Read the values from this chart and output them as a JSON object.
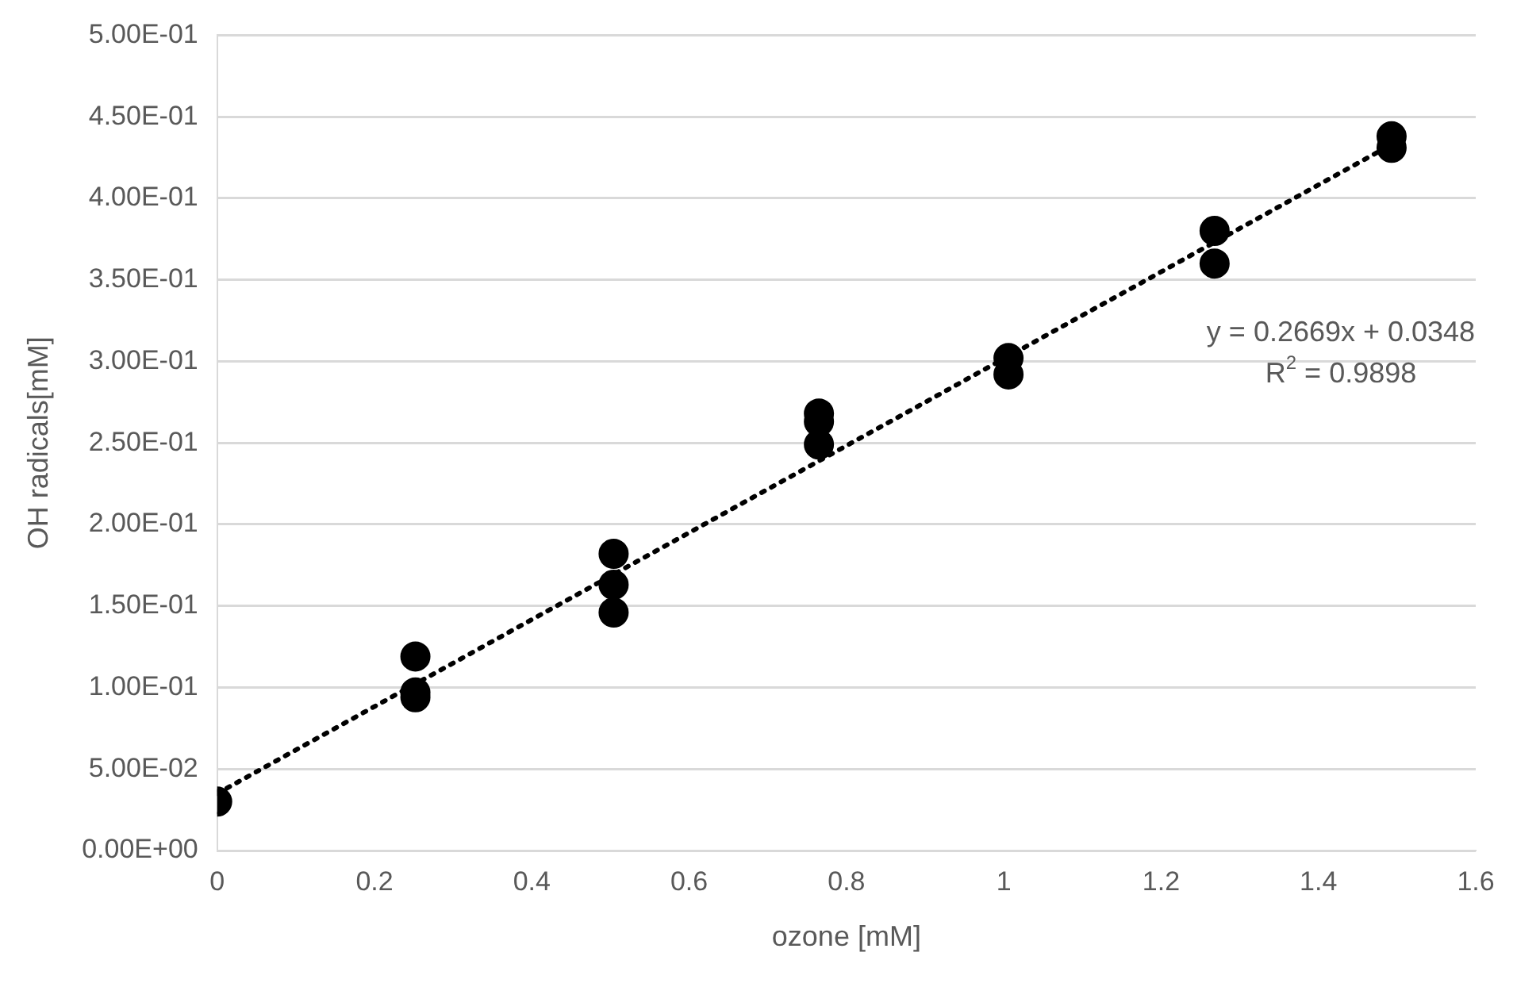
{
  "chart_data": {
    "type": "scatter",
    "xlabel": "ozone [mM]",
    "ylabel": "OH radicals[mM]",
    "xlim": [
      0,
      1.6
    ],
    "xticks": [
      0,
      0.2,
      0.4,
      0.6,
      0.8,
      1,
      1.2,
      1.4,
      1.6
    ],
    "ylim": [
      0,
      0.5
    ],
    "yticks": [
      {
        "value": 0,
        "label": "0.00E+00"
      },
      {
        "value": 0.05,
        "label": "5.00E-02"
      },
      {
        "value": 0.1,
        "label": "1.00E-01"
      },
      {
        "value": 0.15,
        "label": "1.50E-01"
      },
      {
        "value": 0.2,
        "label": "2.00E-01"
      },
      {
        "value": 0.25,
        "label": "2.50E-01"
      },
      {
        "value": 0.3,
        "label": "3.00E-01"
      },
      {
        "value": 0.35,
        "label": "3.50E-01"
      },
      {
        "value": 0.4,
        "label": "4.00E-01"
      },
      {
        "value": 0.45,
        "label": "4.50E-01"
      },
      {
        "value": 0.5,
        "label": "5.00E-01"
      }
    ],
    "grid": "y",
    "legend": false,
    "marker": "circle",
    "series": [
      {
        "color": "#000000",
        "x": [
          0,
          0.252,
          0.252,
          0.252,
          0.504,
          0.504,
          0.504,
          0.765,
          0.765,
          0.765,
          1.006,
          1.006,
          1.268,
          1.268,
          1.493,
          1.493
        ],
        "values": [
          0.03,
          0.119,
          0.097,
          0.094,
          0.182,
          0.163,
          0.146,
          0.268,
          0.263,
          0.249,
          0.302,
          0.292,
          0.38,
          0.36,
          0.438,
          0.431
        ]
      },
      {
        "type": "line",
        "color": "#000000",
        "line_style": "dotted",
        "marker": "none",
        "x": [
          0,
          1.493
        ],
        "values": [
          0.035,
          0.433
        ]
      }
    ],
    "annotations": [
      "y = 0.2669x + 0.0348",
      "R$^{2}$ = 0.9898"
    ]
  }
}
